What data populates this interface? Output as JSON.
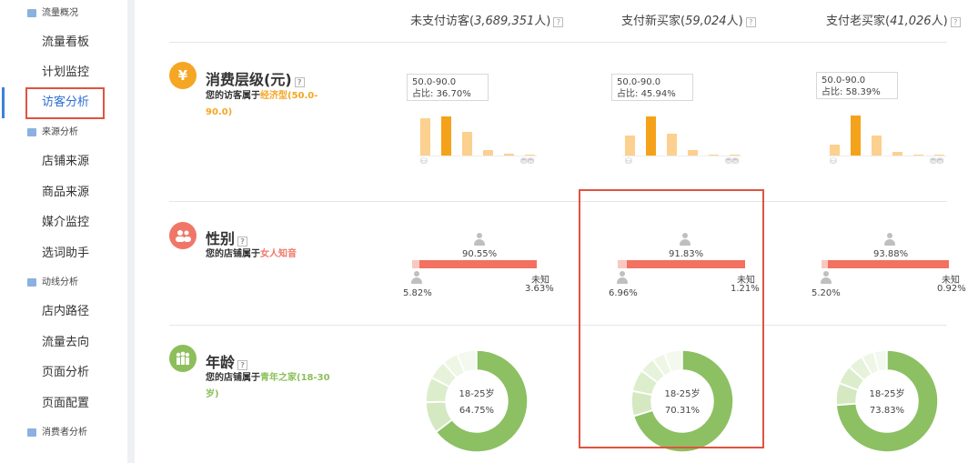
{
  "sidebar": {
    "groups": [
      {
        "label": "流量概况",
        "items": [
          "流量看板",
          "计划监控",
          "访客分析"
        ]
      },
      {
        "label": "来源分析",
        "items": [
          "店铺来源",
          "商品来源",
          "媒介监控",
          "选词助手"
        ]
      },
      {
        "label": "动线分析",
        "items": [
          "店内路径",
          "流量去向",
          "页面分析",
          "页面配置"
        ]
      },
      {
        "label": "消费者分析",
        "items": []
      }
    ],
    "active_item": "访客分析"
  },
  "columns": [
    {
      "label": "未支付访客",
      "count": "3,689,351",
      "unit": "人"
    },
    {
      "label": "支付新买家",
      "count": "59,024",
      "unit": "人"
    },
    {
      "label": "支付老买家",
      "count": "41,026",
      "unit": "人"
    }
  ],
  "rows": {
    "spending": {
      "title": "消费层级(元)",
      "desc_prefix": "您的访客属于",
      "desc_value": "经济型(50.0-90.0)",
      "icon_glyph": "¥",
      "icon_color": "#f5a623",
      "accent_color": "#f5a623",
      "range_label": "50.0-90.0",
      "share_prefix": "占比: ",
      "columns": [
        {
          "share": "36.70%",
          "bars": [
            0.9,
            0.93,
            0.57,
            0.13,
            0.04,
            0.02
          ]
        },
        {
          "share": "45.94%",
          "bars": [
            0.47,
            0.93,
            0.53,
            0.12,
            0.03,
            0.02
          ]
        },
        {
          "share": "58.39%",
          "bars": [
            0.25,
            0.95,
            0.47,
            0.08,
            0.02,
            0.01
          ]
        }
      ]
    },
    "gender": {
      "title": "性别",
      "desc_prefix": "您的店铺属于",
      "desc_value": "女人知音",
      "icon_color": "#f07767",
      "accent_color": "#f07767",
      "unknown_label": "未知",
      "columns": [
        {
          "female": "90.55%",
          "male": "5.82%",
          "unknown": "3.63%",
          "male_frac": 0.0582,
          "female_frac": 0.9055
        },
        {
          "female": "91.83%",
          "male": "6.96%",
          "unknown": "1.21%",
          "male_frac": 0.0696,
          "female_frac": 0.9183
        },
        {
          "female": "93.88%",
          "male": "5.20%",
          "unknown": "0.92%",
          "male_frac": 0.052,
          "female_frac": 0.9388
        }
      ]
    },
    "age": {
      "title": "年龄",
      "desc_prefix": "您的店铺属于",
      "desc_value": "青年之家(18-30岁)",
      "icon_color": "#8cbf5a",
      "accent_color": "#8cbf5a",
      "top_group": "18-25岁",
      "columns": [
        {
          "share": "64.75%",
          "slices": [
            0.6475,
            0.1,
            0.08,
            0.06,
            0.05,
            0.0625
          ]
        },
        {
          "share": "70.31%",
          "slices": [
            0.7031,
            0.08,
            0.07,
            0.05,
            0.04,
            0.0569
          ]
        },
        {
          "share": "73.83%",
          "slices": [
            0.7383,
            0.07,
            0.06,
            0.05,
            0.04,
            0.0417
          ]
        }
      ]
    }
  }
}
